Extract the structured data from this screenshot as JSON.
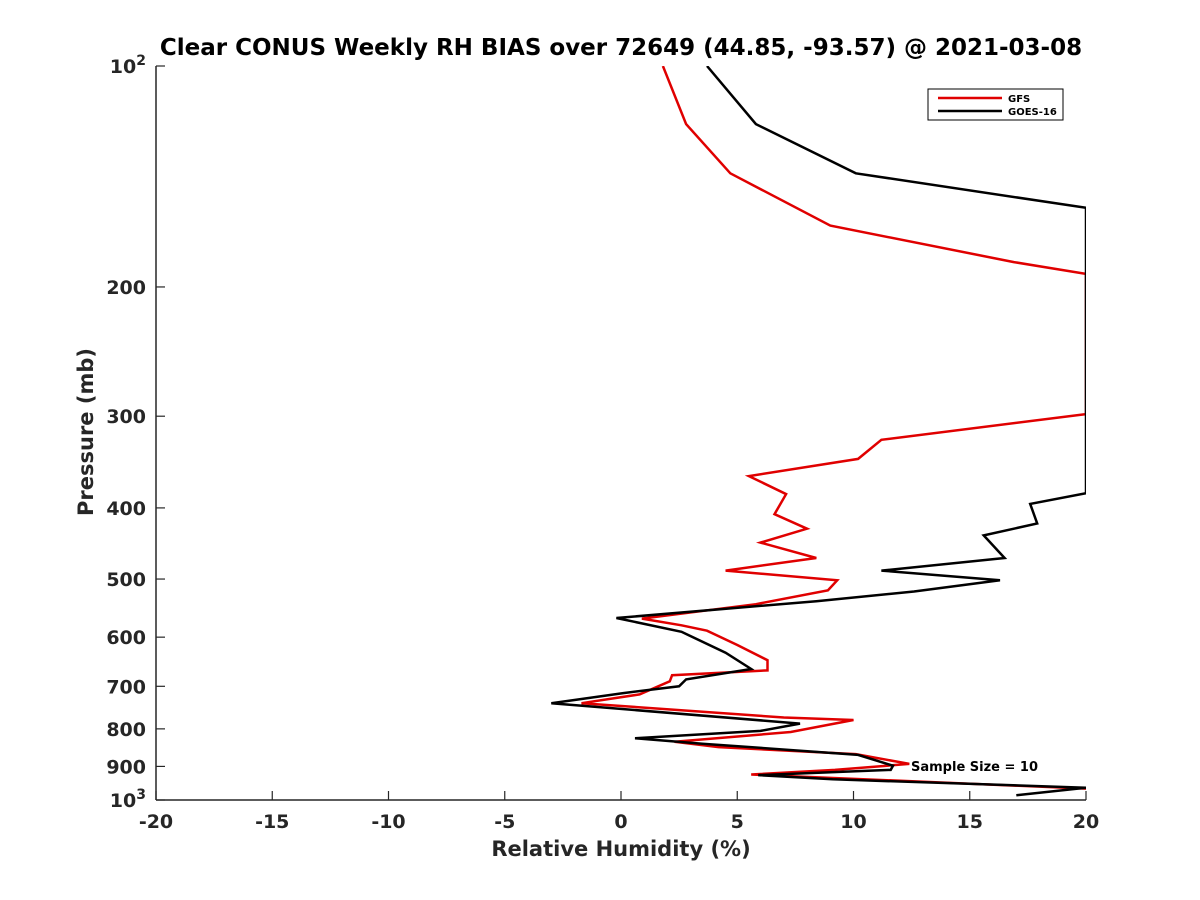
{
  "chart_data": {
    "type": "line",
    "title": "Clear CONUS Weekly RH BIAS over 72649 (44.85, -93.57) @ 2021-03-08",
    "xlabel": "Relative Humidity (%)",
    "ylabel": "Pressure (mb)",
    "xlim": [
      -20,
      20
    ],
    "ylim": [
      100,
      1000
    ],
    "y_scale": "log",
    "y_reversed": true,
    "grid": false,
    "legend_position": "top-right",
    "x_ticks": [
      {
        "value": -20,
        "label": "-20"
      },
      {
        "value": -15,
        "label": "-15"
      },
      {
        "value": -10,
        "label": "-10"
      },
      {
        "value": -5,
        "label": "-5"
      },
      {
        "value": 0,
        "label": "0"
      },
      {
        "value": 5,
        "label": "5"
      },
      {
        "value": 10,
        "label": "10"
      },
      {
        "value": 15,
        "label": "15"
      },
      {
        "value": 20,
        "label": "20"
      }
    ],
    "y_ticks": [
      {
        "value": 100,
        "label": "10",
        "sup": "2"
      },
      {
        "value": 200,
        "label": "200",
        "sup": ""
      },
      {
        "value": 300,
        "label": "300",
        "sup": ""
      },
      {
        "value": 400,
        "label": "400",
        "sup": ""
      },
      {
        "value": 500,
        "label": "500",
        "sup": ""
      },
      {
        "value": 600,
        "label": "600",
        "sup": ""
      },
      {
        "value": 700,
        "label": "700",
        "sup": ""
      },
      {
        "value": 800,
        "label": "800",
        "sup": ""
      },
      {
        "value": 900,
        "label": "900",
        "sup": ""
      },
      {
        "value": 1000,
        "label": "10",
        "sup": "3"
      }
    ],
    "series": [
      {
        "name": "GFS",
        "color": "#e00000",
        "points": [
          [
            1.8,
            100
          ],
          [
            2.8,
            120
          ],
          [
            4.7,
            140
          ],
          [
            9.0,
            165
          ],
          [
            16.9,
            185
          ],
          [
            20.0,
            192
          ],
          [
            20.0,
            298
          ],
          [
            11.2,
            323
          ],
          [
            10.2,
            343
          ],
          [
            5.5,
            362
          ],
          [
            7.1,
            383
          ],
          [
            6.6,
            408
          ],
          [
            8.0,
            427
          ],
          [
            6.0,
            446
          ],
          [
            8.4,
            468
          ],
          [
            4.5,
            487
          ],
          [
            9.3,
            502
          ],
          [
            8.9,
            518
          ],
          [
            5.8,
            541
          ],
          [
            0.9,
            566
          ],
          [
            2.6,
            578
          ],
          [
            3.7,
            588
          ],
          [
            5.0,
            615
          ],
          [
            6.3,
            645
          ],
          [
            6.3,
            666
          ],
          [
            2.2,
            676
          ],
          [
            2.1,
            689
          ],
          [
            0.8,
            718
          ],
          [
            -1.7,
            738
          ],
          [
            7.0,
            772
          ],
          [
            10.0,
            778
          ],
          [
            7.3,
            808
          ],
          [
            2.3,
            833
          ],
          [
            4.2,
            847
          ],
          [
            10.1,
            866
          ],
          [
            12.4,
            893
          ],
          [
            9.2,
            910
          ],
          [
            5.6,
            923
          ],
          [
            20.0,
            965
          ]
        ]
      },
      {
        "name": "GOES-16",
        "color": "#000000",
        "points": [
          [
            3.7,
            100
          ],
          [
            5.8,
            120
          ],
          [
            10.1,
            140
          ],
          [
            20.0,
            156
          ],
          [
            20.0,
            382
          ],
          [
            17.6,
            395
          ],
          [
            17.9,
            420
          ],
          [
            15.6,
            436
          ],
          [
            16.5,
            468
          ],
          [
            11.2,
            487
          ],
          [
            16.3,
            502
          ],
          [
            12.6,
            520
          ],
          [
            8.4,
            536
          ],
          [
            -0.2,
            565
          ],
          [
            2.6,
            590
          ],
          [
            4.5,
            630
          ],
          [
            5.6,
            663
          ],
          [
            2.8,
            685
          ],
          [
            2.5,
            700
          ],
          [
            0.1,
            715
          ],
          [
            -3.0,
            738
          ],
          [
            7.7,
            787
          ],
          [
            6.0,
            805
          ],
          [
            0.6,
            824
          ],
          [
            3.5,
            838
          ],
          [
            10.2,
            868
          ],
          [
            11.7,
            898
          ],
          [
            11.6,
            910
          ],
          [
            5.9,
            925
          ],
          [
            9.1,
            937
          ],
          [
            20.0,
            962
          ],
          [
            17.0,
            985
          ]
        ]
      }
    ],
    "annotation": "Sample Size = 10"
  }
}
